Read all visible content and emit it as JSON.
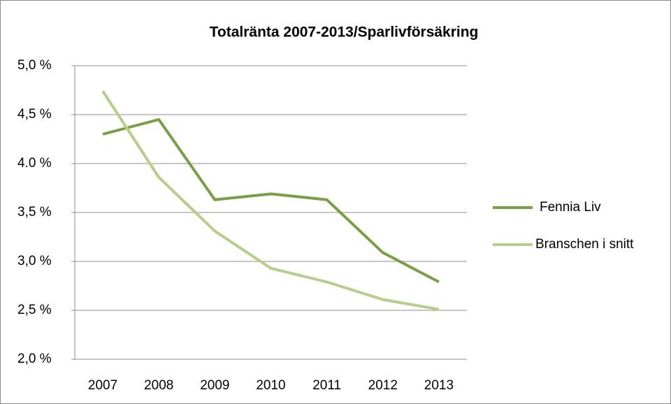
{
  "chart_data": {
    "type": "line",
    "title": "Totalränta 2007-2013/Sparlivförsäkring",
    "categories": [
      "2007",
      "2008",
      "2009",
      "2010",
      "2011",
      "2012",
      "2013"
    ],
    "series": [
      {
        "name": "Fennia Liv",
        "color": "#77a043",
        "values": [
          4.3,
          4.45,
          3.63,
          3.69,
          3.63,
          3.09,
          2.79
        ]
      },
      {
        "name": "Branschen i snitt",
        "color": "#b5cf8a",
        "values": [
          4.74,
          3.86,
          3.31,
          2.93,
          2.79,
          2.61,
          2.51
        ]
      }
    ],
    "ylim": [
      2.0,
      5.0
    ],
    "yticks": [
      {
        "value": 2.0,
        "label": "2,0 %"
      },
      {
        "value": 2.5,
        "label": "2,5 %"
      },
      {
        "value": 3.0,
        "label": "3,0 %"
      },
      {
        "value": 3.5,
        "label": "3,5 %"
      },
      {
        "value": 4.0,
        "label": "4.0 %"
      },
      {
        "value": 4.5,
        "label": "4,5 %"
      },
      {
        "value": 5.0,
        "label": "5,0 %"
      }
    ],
    "grid": true,
    "legend": "right"
  }
}
